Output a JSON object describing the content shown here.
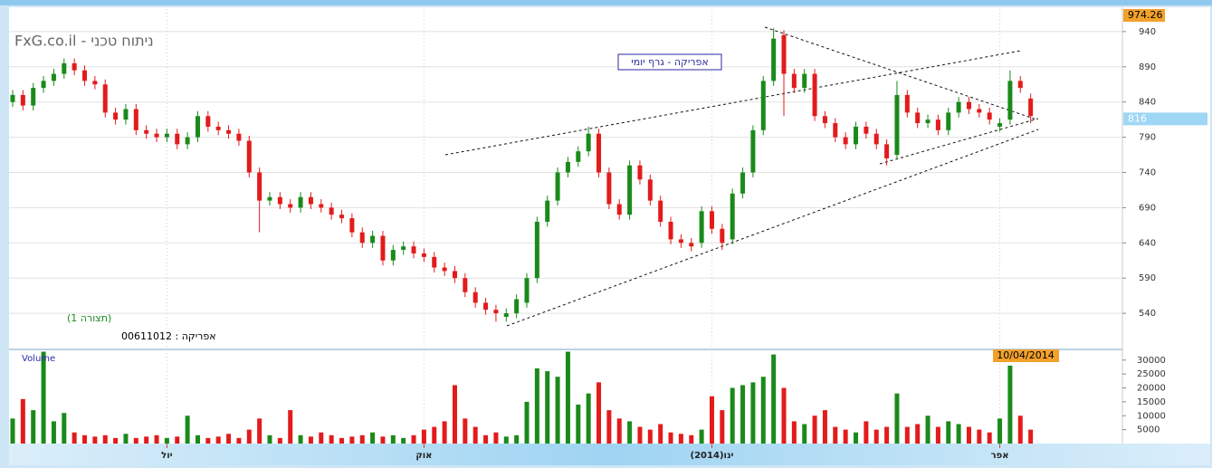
{
  "chart_data": {
    "type": "candlestick",
    "title": "FxG.co.il - ניתוח טכני",
    "subtitle": "אפריקה - גרף יומי",
    "annotation": "(תצורה 1)",
    "instrument": "אפריקה : 00611012",
    "date_label": "10/04/2014",
    "price_markers": [
      974.26,
      816
    ],
    "up_color": "#1a8a1a",
    "down_color": "#e31b1b",
    "grid": true,
    "categories": [
      null,
      null,
      null,
      null,
      null,
      null,
      null,
      null,
      null,
      null,
      null,
      null,
      null,
      null,
      null,
      "יול",
      null,
      null,
      null,
      null,
      null,
      null,
      null,
      null,
      null,
      null,
      null,
      null,
      null,
      null,
      null,
      null,
      null,
      null,
      null,
      null,
      null,
      null,
      null,
      null,
      "אוק",
      null,
      null,
      null,
      null,
      null,
      null,
      null,
      null,
      null,
      null,
      null,
      null,
      null,
      null,
      null,
      null,
      null,
      null,
      null,
      null,
      null,
      null,
      null,
      null,
      null,
      null,
      null,
      "ינו(2014)",
      null,
      null,
      null,
      null,
      null,
      null,
      null,
      null,
      null,
      null,
      null,
      null,
      null,
      null,
      null,
      null,
      null,
      null,
      null,
      null,
      null,
      null,
      null,
      null,
      null,
      null,
      null,
      "אפר",
      null,
      null,
      null
    ],
    "open": [
      840,
      850,
      835,
      860,
      870,
      880,
      895,
      885,
      870,
      865,
      825,
      815,
      830,
      800,
      795,
      790,
      795,
      780,
      790,
      820,
      805,
      800,
      795,
      785,
      740,
      700,
      705,
      695,
      690,
      705,
      695,
      690,
      680,
      675,
      655,
      640,
      650,
      615,
      630,
      635,
      625,
      620,
      605,
      600,
      590,
      570,
      555,
      545,
      535,
      540,
      555,
      590,
      670,
      700,
      740,
      755,
      770,
      795,
      740,
      695,
      680,
      750,
      730,
      700,
      670,
      645,
      640,
      640,
      685,
      660,
      645,
      710,
      740,
      800,
      870,
      935,
      880,
      860,
      880,
      820,
      810,
      790,
      780,
      805,
      795,
      780,
      765,
      850,
      825,
      810,
      815,
      800,
      825,
      840,
      830,
      825,
      805,
      815,
      870,
      845
    ],
    "high": [
      857,
      857,
      867,
      877,
      887,
      902,
      902,
      892,
      877,
      872,
      832,
      837,
      837,
      807,
      802,
      802,
      802,
      797,
      827,
      827,
      812,
      807,
      802,
      792,
      747,
      712,
      712,
      702,
      712,
      712,
      702,
      697,
      687,
      682,
      662,
      657,
      657,
      637,
      642,
      642,
      632,
      627,
      612,
      607,
      597,
      577,
      562,
      552,
      547,
      567,
      597,
      677,
      707,
      747,
      762,
      777,
      805,
      802,
      747,
      702,
      757,
      757,
      737,
      707,
      677,
      652,
      647,
      692,
      692,
      667,
      717,
      747,
      807,
      877,
      945,
      942,
      887,
      887,
      887,
      827,
      817,
      797,
      812,
      812,
      802,
      787,
      870,
      857,
      832,
      822,
      822,
      832,
      847,
      847,
      837,
      832,
      817,
      885,
      877,
      852
    ],
    "low": [
      833,
      828,
      828,
      853,
      863,
      873,
      878,
      863,
      858,
      818,
      808,
      808,
      793,
      788,
      783,
      783,
      773,
      773,
      783,
      798,
      793,
      788,
      778,
      733,
      655,
      693,
      688,
      683,
      683,
      688,
      683,
      673,
      668,
      648,
      633,
      633,
      608,
      608,
      623,
      618,
      613,
      598,
      593,
      583,
      563,
      548,
      538,
      528,
      528,
      533,
      548,
      583,
      663,
      693,
      733,
      748,
      763,
      733,
      688,
      673,
      673,
      723,
      693,
      663,
      638,
      633,
      628,
      633,
      653,
      630,
      638,
      703,
      733,
      793,
      863,
      820,
      853,
      853,
      813,
      803,
      783,
      773,
      773,
      788,
      773,
      750,
      758,
      818,
      803,
      803,
      793,
      793,
      818,
      823,
      818,
      808,
      798,
      808,
      853,
      810
    ],
    "close": [
      850,
      835,
      860,
      870,
      880,
      895,
      885,
      870,
      865,
      825,
      815,
      830,
      800,
      795,
      790,
      795,
      780,
      790,
      820,
      805,
      800,
      795,
      785,
      740,
      700,
      705,
      695,
      690,
      705,
      695,
      690,
      680,
      675,
      655,
      640,
      650,
      615,
      630,
      635,
      625,
      620,
      605,
      600,
      590,
      570,
      555,
      545,
      540,
      540,
      560,
      590,
      670,
      700,
      740,
      755,
      770,
      795,
      740,
      695,
      680,
      750,
      730,
      700,
      670,
      645,
      640,
      635,
      685,
      660,
      640,
      710,
      740,
      800,
      870,
      930,
      880,
      860,
      880,
      820,
      810,
      790,
      780,
      805,
      795,
      780,
      760,
      850,
      825,
      810,
      815,
      800,
      825,
      840,
      830,
      825,
      815,
      810,
      870,
      860,
      820
    ],
    "ylim": [
      490,
      972
    ],
    "yticks": [
      540,
      590,
      640,
      690,
      740,
      790,
      840,
      890,
      940
    ],
    "volume": {
      "label": "Volume",
      "values": [
        9000,
        16000,
        12000,
        33000,
        8000,
        11000,
        4000,
        3000,
        2500,
        3000,
        2000,
        3500,
        2000,
        2500,
        3000,
        2000,
        2500,
        10000,
        3000,
        2000,
        2500,
        3500,
        2000,
        5000,
        9000,
        3000,
        2000,
        12000,
        3000,
        2500,
        4000,
        3000,
        2000,
        2500,
        3000,
        4000,
        2500,
        3000,
        2000,
        3000,
        5000,
        6000,
        8000,
        21000,
        9000,
        6000,
        3000,
        4000,
        2500,
        3000,
        15000,
        27000,
        26000,
        24000,
        33000,
        14000,
        18000,
        22000,
        12000,
        9000,
        8000,
        6000,
        5000,
        7000,
        4000,
        3500,
        3000,
        5000,
        17000,
        12000,
        20000,
        21000,
        22000,
        24000,
        32000,
        20000,
        8000,
        7000,
        10000,
        12000,
        6000,
        5000,
        4000,
        8000,
        5000,
        6000,
        18000,
        6000,
        7000,
        10000,
        6000,
        8000,
        7000,
        6000,
        5000,
        4000,
        9000,
        28000,
        10000,
        5000
      ],
      "ylim": [
        0,
        33500
      ],
      "yticks": [
        5000,
        10000,
        15000,
        20000,
        25000,
        30000
      ]
    }
  }
}
